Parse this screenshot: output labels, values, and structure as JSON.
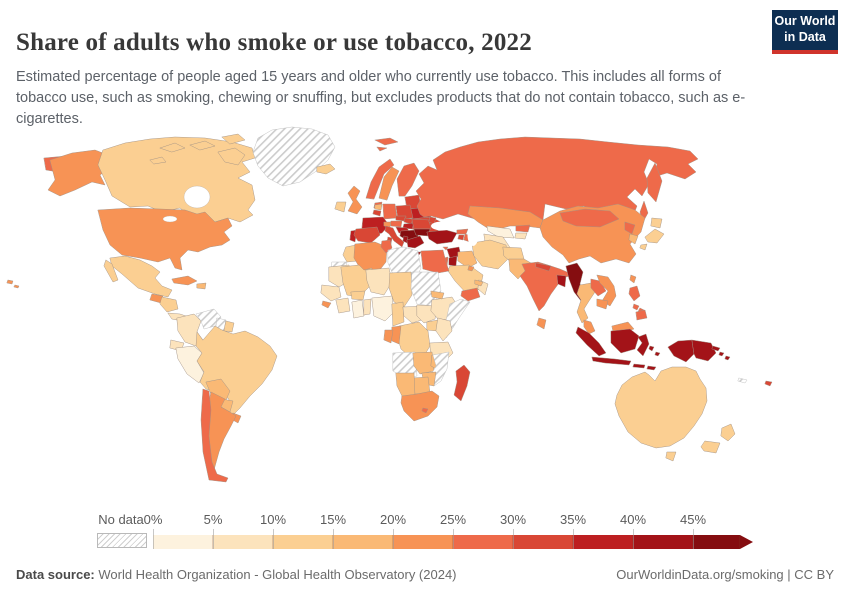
{
  "header": {
    "title": "Share of adults who smoke or use tobacco, 2022",
    "subtitle": "Estimated percentage of people aged 15 years and older who currently use tobacco. This includes all forms of tobacco use, such as smoking, chewing or snuffing, but excludes products that do not contain tobacco, such as e-cigarettes.",
    "logo": {
      "line1": "Our World",
      "line2": "in Data"
    }
  },
  "footer": {
    "source_label": "Data source:",
    "source_text": " World Health Organization - Global Health Observatory (2024)",
    "right_text": "OurWorldinData.org/smoking | CC BY"
  },
  "legend": {
    "no_data_label": "No data",
    "ticks": [
      "0%",
      "5%",
      "10%",
      "15%",
      "20%",
      "25%",
      "30%",
      "35%",
      "40%",
      "45%"
    ]
  },
  "colors": {
    "logo_bg": "#0d2e52",
    "logo_red": "#d0342c",
    "title_text": "#383838",
    "muted_text": "#5b5b5b",
    "border_stroke": "#a29286"
  },
  "chart_data": {
    "type": "choropleth",
    "title": "Share of adults who smoke or use tobacco, 2022",
    "unit": "%",
    "bin_size": 5,
    "bin_labels": [
      "0-5%",
      "5-10%",
      "10-15%",
      "15-20%",
      "20-25%",
      "25-30%",
      "30-35%",
      "35-40%",
      "40-45%",
      "45%+"
    ],
    "palette": [
      "#fdf2de",
      "#fce3bc",
      "#fbcf92",
      "#fab975",
      "#f79355",
      "#ee6a4a",
      "#d94735",
      "#bd1f21",
      "#a31318",
      "#850d10"
    ],
    "no_data": {
      "label": "No data",
      "style": "hatched"
    },
    "regions": [
      {
        "id": "usa",
        "name": "United States",
        "value": 23
      },
      {
        "id": "canada",
        "name": "Canada",
        "value": 12
      },
      {
        "id": "greenland",
        "name": "Greenland",
        "value": null,
        "no_data": true
      },
      {
        "id": "mexico",
        "name": "Mexico",
        "value": 13
      },
      {
        "id": "guatemala",
        "name": "Guatemala",
        "value": 21
      },
      {
        "id": "honduras_nicaragua",
        "name": "Honduras & Nicaragua",
        "value": 13
      },
      {
        "id": "costa_panama",
        "name": "Costa Rica & Panama",
        "value": 9
      },
      {
        "id": "cuba",
        "name": "Cuba",
        "value": 24
      },
      {
        "id": "hispaniola",
        "name": "Haiti & Dominican Republic",
        "value": 17
      },
      {
        "id": "colombia",
        "name": "Colombia",
        "value": 9
      },
      {
        "id": "venezuela",
        "name": "Venezuela",
        "value": null,
        "no_data": true
      },
      {
        "id": "guyana",
        "name": "Guyana",
        "value": null,
        "no_data": true
      },
      {
        "id": "suriname",
        "name": "Suriname",
        "value": 13
      },
      {
        "id": "ecuador",
        "name": "Ecuador",
        "value": 7
      },
      {
        "id": "peru",
        "name": "Peru",
        "value": 4
      },
      {
        "id": "brazil",
        "name": "Brazil",
        "value": 12
      },
      {
        "id": "bolivia",
        "name": "Bolivia",
        "value": 17
      },
      {
        "id": "paraguay",
        "name": "Paraguay",
        "value": 17
      },
      {
        "id": "uruguay",
        "name": "Uruguay",
        "value": 21
      },
      {
        "id": "argentina",
        "name": "Argentina",
        "value": 23
      },
      {
        "id": "chile",
        "name": "Chile",
        "value": 27
      },
      {
        "id": "iceland",
        "name": "Iceland",
        "value": 11
      },
      {
        "id": "uk",
        "name": "United Kingdom",
        "value": 21
      },
      {
        "id": "ireland",
        "name": "Ireland",
        "value": 14
      },
      {
        "id": "norway",
        "name": "Norway",
        "value": 26
      },
      {
        "id": "sweden",
        "name": "Sweden",
        "value": 21
      },
      {
        "id": "finland",
        "name": "Finland",
        "value": 26
      },
      {
        "id": "denmark",
        "name": "Denmark",
        "value": 28
      },
      {
        "id": "baltics",
        "name": "Baltic states",
        "value": 31
      },
      {
        "id": "belarus",
        "name": "Belarus",
        "value": 37
      },
      {
        "id": "ukraine",
        "name": "Ukraine",
        "value": 32
      },
      {
        "id": "poland",
        "name": "Poland",
        "value": 31
      },
      {
        "id": "germany",
        "name": "Germany",
        "value": 28
      },
      {
        "id": "netherlands",
        "name": "Netherlands",
        "value": 17
      },
      {
        "id": "belgium",
        "name": "Belgium",
        "value": 31
      },
      {
        "id": "france",
        "name": "France",
        "value": 35
      },
      {
        "id": "switzerland",
        "name": "Switzerland",
        "value": 21
      },
      {
        "id": "austria",
        "name": "Austria",
        "value": 28
      },
      {
        "id": "czechia",
        "name": "Czechia",
        "value": 31
      },
      {
        "id": "slovakia",
        "name": "Slovakia",
        "value": 31
      },
      {
        "id": "hungary",
        "name": "Hungary",
        "value": 36
      },
      {
        "id": "portugal",
        "name": "Portugal",
        "value": 37
      },
      {
        "id": "spain",
        "name": "Spain",
        "value": 32
      },
      {
        "id": "italy",
        "name": "Italy",
        "value": 31
      },
      {
        "id": "slovenia_croatia",
        "name": "Croatia & Slovenia",
        "value": 36
      },
      {
        "id": "balkans",
        "name": "Serbia & Western Balkans",
        "value": 47
      },
      {
        "id": "romania",
        "name": "Romania",
        "value": 33
      },
      {
        "id": "bulgaria",
        "name": "Bulgaria",
        "value": 46
      },
      {
        "id": "greece",
        "name": "Greece",
        "value": 43
      },
      {
        "id": "albania",
        "name": "Albania",
        "value": 44
      },
      {
        "id": "moldova",
        "name": "Moldova",
        "value": 32
      },
      {
        "id": "turkey",
        "name": "Turkey",
        "value": 42
      },
      {
        "id": "cyprus",
        "name": "Cyprus",
        "value": 27
      },
      {
        "id": "syria",
        "name": "Syria",
        "value": 42
      },
      {
        "id": "israel",
        "name": "Israel",
        "value": 26
      },
      {
        "id": "jordan",
        "name": "Jordan",
        "value": 41
      },
      {
        "id": "iraq",
        "name": "Iraq",
        "value": 19
      },
      {
        "id": "saudi_arabia",
        "name": "Saudi Arabia",
        "value": 14
      },
      {
        "id": "yemen",
        "name": "Yemen",
        "value": 28
      },
      {
        "id": "oman",
        "name": "Oman",
        "value": 9
      },
      {
        "id": "uae",
        "name": "United Arab Emirates",
        "value": 18
      },
      {
        "id": "kuwait",
        "name": "Kuwait",
        "value": 22
      },
      {
        "id": "iran",
        "name": "Iran",
        "value": 13
      },
      {
        "id": "afghanistan",
        "name": "Afghanistan",
        "value": 13
      },
      {
        "id": "pakistan",
        "name": "Pakistan",
        "value": 18
      },
      {
        "id": "india",
        "name": "India",
        "value": 27
      },
      {
        "id": "nepal",
        "name": "Nepal",
        "value": 32
      },
      {
        "id": "bangladesh",
        "name": "Bangladesh",
        "value": 41
      },
      {
        "id": "sri_lanka",
        "name": "Sri Lanka",
        "value": 22
      },
      {
        "id": "kazakhstan",
        "name": "Kazakhstan",
        "value": 23
      },
      {
        "id": "uzbekistan",
        "name": "Uzbekistan",
        "value": 4
      },
      {
        "id": "turkmenistan",
        "name": "Turkmenistan",
        "value": 7
      },
      {
        "id": "kyrgyzstan",
        "name": "Kyrgyzstan",
        "value": 28
      },
      {
        "id": "tajikistan",
        "name": "Tajikistan",
        "value": 8
      },
      {
        "id": "georgia",
        "name": "Georgia",
        "value": 28
      },
      {
        "id": "armenia",
        "name": "Armenia",
        "value": 31
      },
      {
        "id": "azerbaijan",
        "name": "Azerbaijan",
        "value": 26
      },
      {
        "id": "russia",
        "name": "Russia",
        "value": 28
      },
      {
        "id": "china",
        "name": "China",
        "value": 24
      },
      {
        "id": "mongolia",
        "name": "Mongolia",
        "value": 28
      },
      {
        "id": "north_korea",
        "name": "North Korea",
        "value": 27
      },
      {
        "id": "south_korea",
        "name": "South Korea",
        "value": 18
      },
      {
        "id": "japan",
        "name": "Japan",
        "value": 14
      },
      {
        "id": "taiwan",
        "name": "Taiwan",
        "value": 22
      },
      {
        "id": "myanmar",
        "name": "Myanmar",
        "value": 46
      },
      {
        "id": "thailand",
        "name": "Thailand",
        "value": 18
      },
      {
        "id": "laos",
        "name": "Laos",
        "value": 28
      },
      {
        "id": "vietnam",
        "name": "Vietnam",
        "value": 23
      },
      {
        "id": "cambodia",
        "name": "Cambodia",
        "value": 21
      },
      {
        "id": "malaysia",
        "name": "Malaysia",
        "value": 24
      },
      {
        "id": "indonesia",
        "name": "Indonesia",
        "value": 41
      },
      {
        "id": "png",
        "name": "Papua New Guinea",
        "value": 42
      },
      {
        "id": "philippines",
        "name": "Philippines",
        "value": 27
      },
      {
        "id": "solomon",
        "name": "Solomon Islands",
        "value": 41
      },
      {
        "id": "fiji",
        "name": "Fiji",
        "value": 31
      },
      {
        "id": "new_caledonia",
        "name": "New Caledonia",
        "value": null,
        "no_data": true
      },
      {
        "id": "australia",
        "name": "Australia",
        "value": 13
      },
      {
        "id": "nz",
        "name": "New Zealand",
        "value": 13
      },
      {
        "id": "morocco",
        "name": "Morocco",
        "value": 13
      },
      {
        "id": "w_sahara",
        "name": "Western Sahara",
        "value": null,
        "no_data": true
      },
      {
        "id": "algeria",
        "name": "Algeria",
        "value": 22
      },
      {
        "id": "tunisia",
        "name": "Tunisia",
        "value": 26
      },
      {
        "id": "libya",
        "name": "Libya",
        "value": null,
        "no_data": true
      },
      {
        "id": "egypt",
        "name": "Egypt",
        "value": 26
      },
      {
        "id": "mauritania",
        "name": "Mauritania",
        "value": 9
      },
      {
        "id": "mali",
        "name": "Mali",
        "value": 11
      },
      {
        "id": "niger",
        "name": "Niger",
        "value": 6
      },
      {
        "id": "chad",
        "name": "Chad",
        "value": 11
      },
      {
        "id": "sudan",
        "name": "Sudan",
        "value": null,
        "no_data": true
      },
      {
        "id": "senegal",
        "name": "Senegal & Guinea",
        "value": 8
      },
      {
        "id": "sierra_leone",
        "name": "Sierra Leone",
        "value": 21
      },
      {
        "id": "ivory_coast",
        "name": "Côte d'Ivoire",
        "value": 8
      },
      {
        "id": "burkina",
        "name": "Burkina Faso",
        "value": 13
      },
      {
        "id": "ghana",
        "name": "Ghana",
        "value": 3
      },
      {
        "id": "togo_benin",
        "name": "Togo & Benin",
        "value": 7
      },
      {
        "id": "nigeria",
        "name": "Nigeria",
        "value": 4
      },
      {
        "id": "cameroon",
        "name": "Cameroon",
        "value": 12
      },
      {
        "id": "car",
        "name": "Central African Republic",
        "value": 8
      },
      {
        "id": "south_sudan",
        "name": "South Sudan",
        "value": 9
      },
      {
        "id": "ethiopia",
        "name": "Ethiopia",
        "value": 5
      },
      {
        "id": "eritrea",
        "name": "Eritrea",
        "value": 17
      },
      {
        "id": "somalia",
        "name": "Somalia",
        "value": null,
        "no_data": true
      },
      {
        "id": "uganda",
        "name": "Uganda",
        "value": 12
      },
      {
        "id": "kenya",
        "name": "Kenya",
        "value": 9
      },
      {
        "id": "drc",
        "name": "Democratic Republic of Congo",
        "value": 13
      },
      {
        "id": "congo",
        "name": "Congo",
        "value": 21
      },
      {
        "id": "gabon",
        "name": "Gabon",
        "value": 21
      },
      {
        "id": "tanzania",
        "name": "Tanzania",
        "value": 8
      },
      {
        "id": "angola",
        "name": "Angola",
        "value": null,
        "no_data": true
      },
      {
        "id": "zambia",
        "name": "Zambia",
        "value": 16
      },
      {
        "id": "malawi",
        "name": "Malawi",
        "value": 16
      },
      {
        "id": "mozambique",
        "name": "Mozambique",
        "value": null,
        "no_data": true
      },
      {
        "id": "zimbabwe",
        "name": "Zimbabwe",
        "value": 17
      },
      {
        "id": "botswana",
        "name": "Botswana",
        "value": 18
      },
      {
        "id": "namibia",
        "name": "Namibia",
        "value": 16
      },
      {
        "id": "south_africa",
        "name": "South Africa",
        "value": 22
      },
      {
        "id": "lesotho",
        "name": "Lesotho",
        "value": 27
      },
      {
        "id": "madagascar",
        "name": "Madagascar",
        "value": 31
      }
    ]
  }
}
